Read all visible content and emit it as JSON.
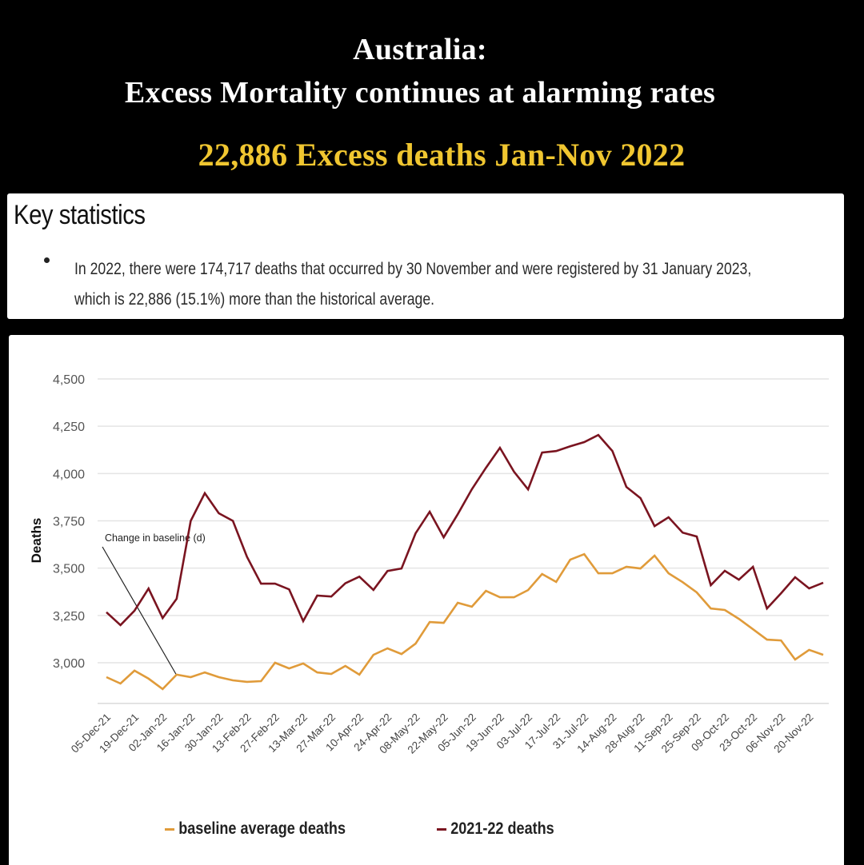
{
  "header": {
    "title_line1": "Australia:",
    "title_line2": "Excess Mortality continues at alarming rates",
    "headline": "22,886 Excess deaths Jan-Nov 2022"
  },
  "key_statistics": {
    "heading": "Key statistics",
    "line1": "In 2022, there were 174,717 deaths that occurred by 30 November and were registered by 31 January 2023,",
    "line2": "which is 22,886 (15.1%) more than the historical average."
  },
  "colors": {
    "baseline": "#e09b3a",
    "deaths": "#7a1420",
    "headline": "#f0c630"
  },
  "chart_data": {
    "type": "line",
    "title": "",
    "xlabel": "",
    "ylabel": "Deaths",
    "ylim": [
      2785,
      4500
    ],
    "yticks": [
      3000,
      3250,
      3500,
      3750,
      4000,
      4250,
      4500
    ],
    "ytick_labels": [
      "3,000",
      "3,250",
      "3,500",
      "3,750",
      "4,000",
      "4,250",
      "4,500"
    ],
    "grid": true,
    "legend_position": "bottom",
    "x_tick_labels": [
      "05-Dec-21",
      "19-Dec-21",
      "02-Jan-22",
      "16-Jan-22",
      "30-Jan-22",
      "13-Feb-22",
      "27-Feb-22",
      "13-Mar-22",
      "27-Mar-22",
      "10-Apr-22",
      "24-Apr-22",
      "08-May-22",
      "22-May-22",
      "05-Jun-22",
      "19-Jun-22",
      "03-Jul-22",
      "17-Jul-22",
      "31-Jul-22",
      "14-Aug-22",
      "28-Aug-22",
      "11-Sep-22",
      "25-Sep-22",
      "09-Oct-22",
      "23-Oct-22",
      "06-Nov-22",
      "20-Nov-22"
    ],
    "x_tick_every": 2,
    "point_count": 52,
    "annotation": {
      "text": "Change in baseline (d)",
      "points_to_index": 5
    },
    "series": [
      {
        "name": "baseline average deaths",
        "color": "#e09b3a",
        "values": [
          2924,
          2890,
          2958,
          2916,
          2861,
          2937,
          2924,
          2949,
          2924,
          2907,
          2899,
          2903,
          3000,
          2970,
          2996,
          2949,
          2941,
          2983,
          2937,
          3042,
          3076,
          3046,
          3101,
          3215,
          3211,
          3317,
          3296,
          3380,
          3346,
          3346,
          3384,
          3469,
          3427,
          3545,
          3574,
          3473,
          3473,
          3507,
          3498,
          3566,
          3473,
          3426,
          3372,
          3287,
          3279,
          3232,
          3177,
          3122,
          3118,
          3017,
          3068,
          3042
        ]
      },
      {
        "name": "2021-22 deaths",
        "color": "#7a1420",
        "values": [
          3267,
          3199,
          3275,
          3392,
          3236,
          3338,
          3750,
          3896,
          3790,
          3750,
          3560,
          3418,
          3418,
          3388,
          3220,
          3355,
          3350,
          3420,
          3455,
          3385,
          3485,
          3498,
          3684,
          3798,
          3663,
          3785,
          3917,
          4030,
          4136,
          4010,
          3916,
          4111,
          4119,
          4144,
          4166,
          4204,
          4119,
          3929,
          3870,
          3722,
          3769,
          3688,
          3667,
          3410,
          3486,
          3439,
          3507,
          3287,
          3367,
          3452,
          3393,
          3423
        ]
      }
    ]
  }
}
